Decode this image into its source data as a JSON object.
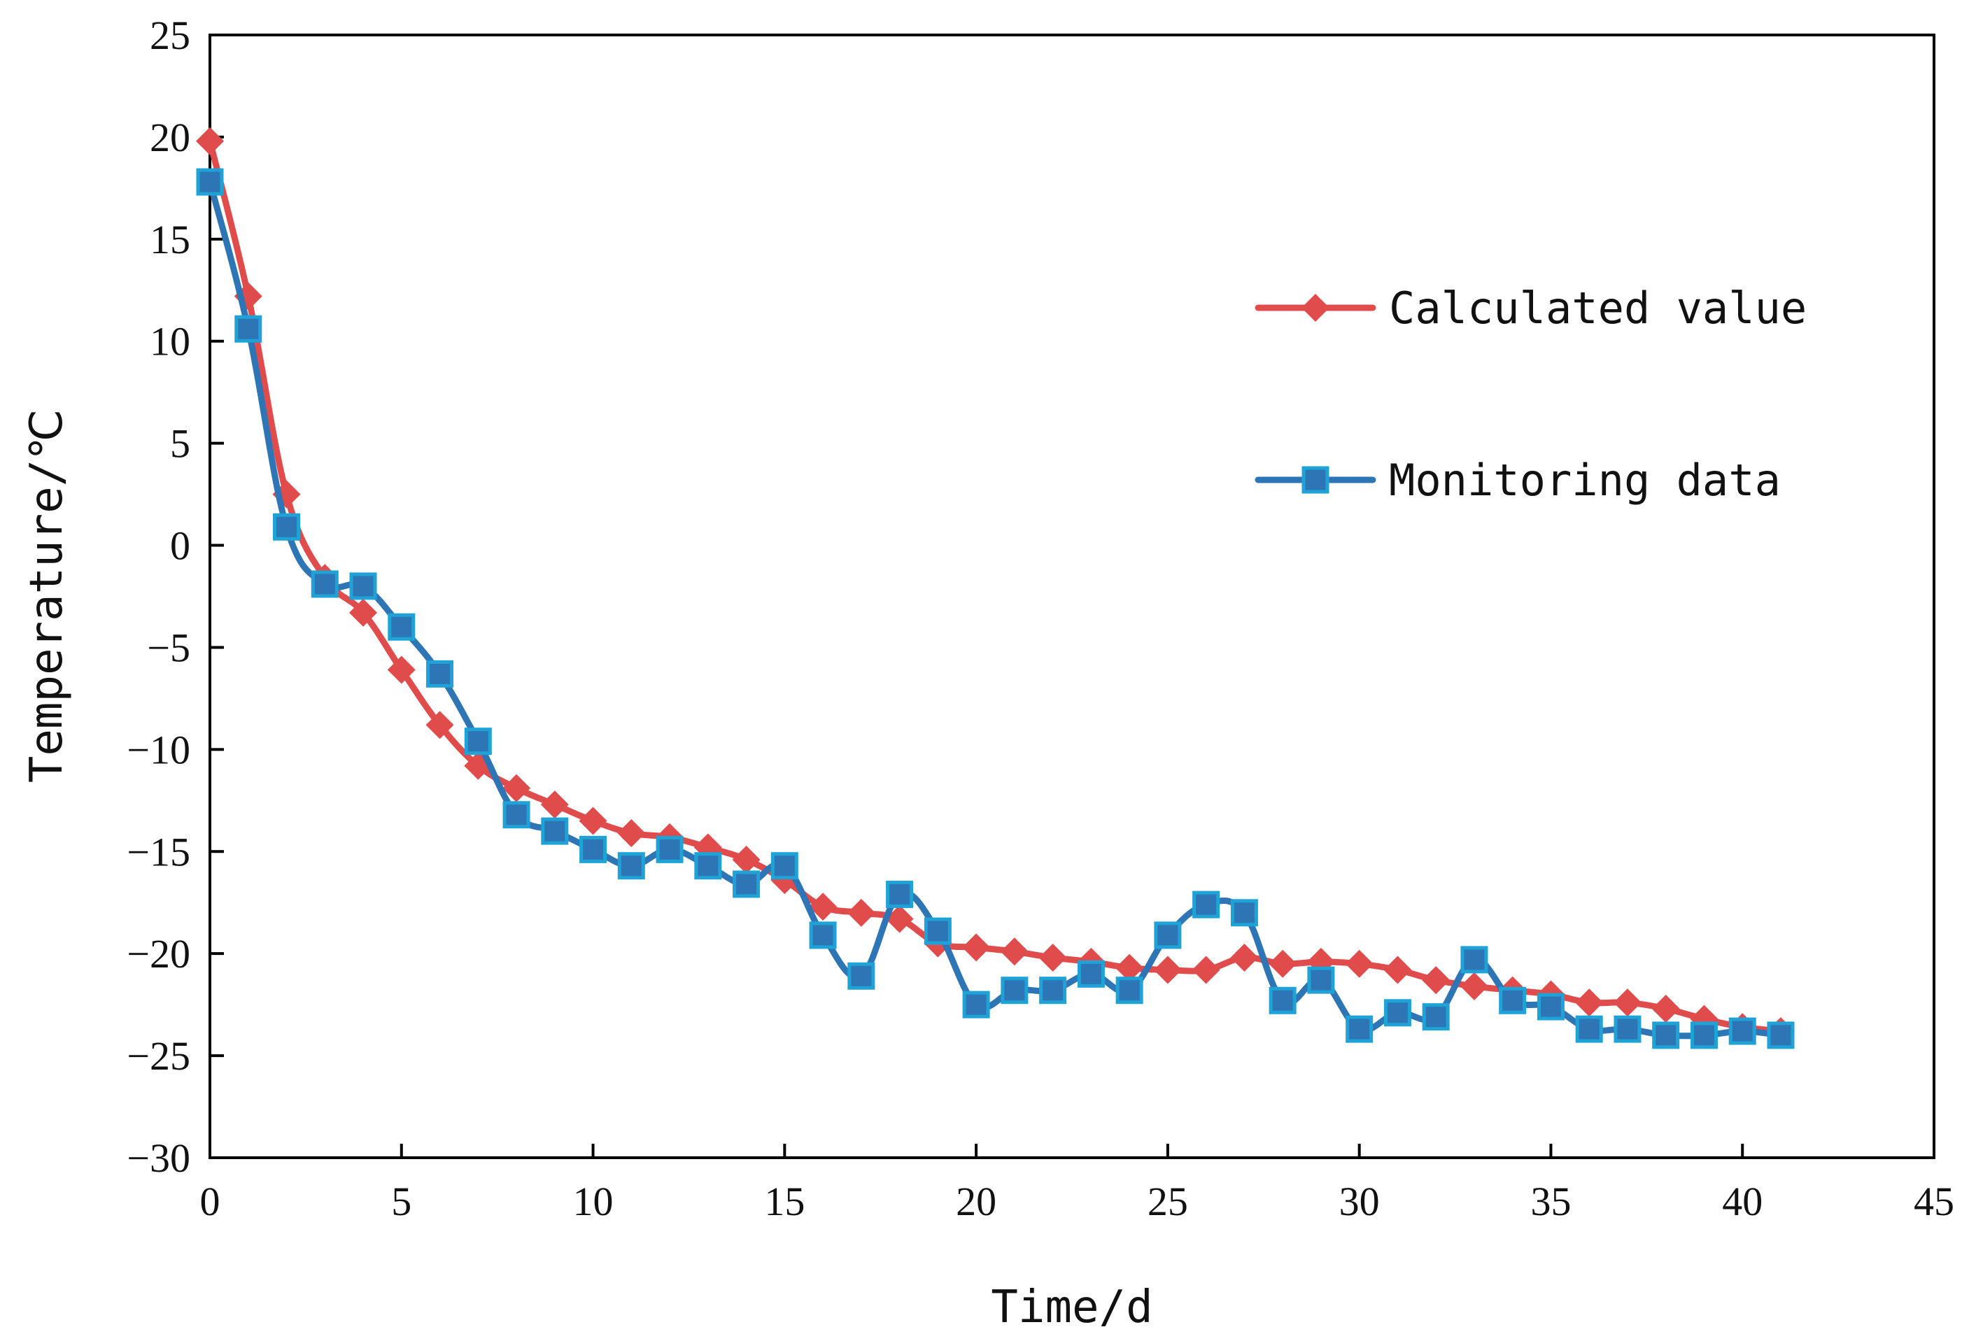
{
  "chart_data": {
    "type": "line",
    "title": "",
    "xlabel": "Time/d",
    "ylabel": "Temperature/℃",
    "xlim": [
      0,
      45
    ],
    "ylim": [
      -30,
      25
    ],
    "xticks": [
      0,
      5,
      10,
      15,
      20,
      25,
      30,
      35,
      40,
      45
    ],
    "yticks": [
      25,
      20,
      15,
      10,
      5,
      0,
      -5,
      -10,
      -15,
      -20,
      -25,
      -30
    ],
    "ytick_labels": [
      "25",
      "20",
      "15",
      "10",
      "5",
      "0",
      "−5",
      "−10",
      "−15",
      "−20",
      "−25",
      "−30"
    ],
    "grid": false,
    "legend_position": "right",
    "x": [
      0,
      1,
      2,
      3,
      4,
      5,
      6,
      7,
      8,
      9,
      10,
      11,
      12,
      13,
      14,
      15,
      16,
      17,
      18,
      19,
      20,
      21,
      22,
      23,
      24,
      25,
      26,
      27,
      28,
      29,
      30,
      31,
      32,
      33,
      34,
      35,
      36,
      37,
      38,
      39,
      40,
      41
    ],
    "series": [
      {
        "name": "Calculated value",
        "color": "#e04b4b",
        "marker": "diamond",
        "values": [
          19.8,
          12.2,
          2.5,
          -1.6,
          -3.3,
          -6.1,
          -8.8,
          -10.8,
          -11.9,
          -12.7,
          -13.5,
          -14.1,
          -14.3,
          -14.8,
          -15.4,
          -16.4,
          -17.7,
          -18.0,
          -18.3,
          -19.5,
          -19.7,
          -19.9,
          -20.2,
          -20.4,
          -20.7,
          -20.8,
          -20.8,
          -20.2,
          -20.5,
          -20.4,
          -20.5,
          -20.8,
          -21.3,
          -21.6,
          -21.8,
          -22.0,
          -22.4,
          -22.4,
          -22.7,
          -23.2,
          -23.6,
          -23.8
        ]
      },
      {
        "name": "Monitoring data",
        "color": "#2e75b6",
        "marker": "square",
        "values": [
          17.8,
          10.6,
          0.9,
          -1.9,
          -2.0,
          -4.0,
          -6.3,
          -9.6,
          -13.2,
          -14.0,
          -14.9,
          -15.7,
          -14.9,
          -15.7,
          -16.6,
          -15.7,
          -19.1,
          -21.1,
          -17.1,
          -18.9,
          -22.5,
          -21.8,
          -21.8,
          -21.0,
          -21.8,
          -19.1,
          -17.6,
          -18.0,
          -22.3,
          -21.3,
          -23.7,
          -22.9,
          -23.1,
          -20.3,
          -22.3,
          -22.6,
          -23.7,
          -23.7,
          -24.0,
          -24.0,
          -23.8,
          -24.0
        ]
      }
    ]
  }
}
